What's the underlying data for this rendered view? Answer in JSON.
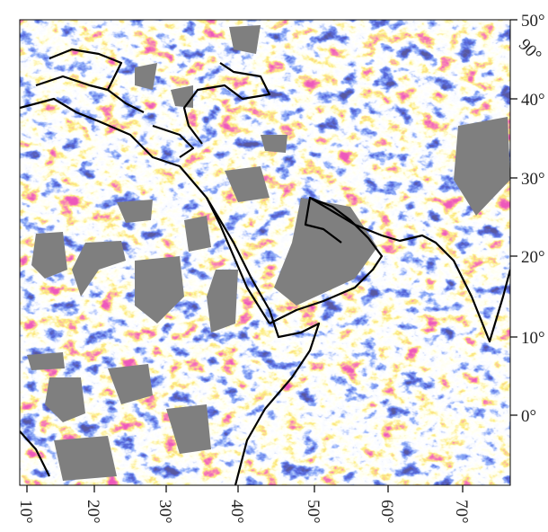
{
  "map": {
    "latitude_labels": [
      "50°",
      "40°",
      "30°",
      "20°",
      "10°",
      "0°"
    ],
    "corner_label": "90°",
    "longitude_labels": [
      "10°",
      "20°",
      "30°",
      "40°",
      "50°",
      "60°",
      "70°"
    ]
  }
}
